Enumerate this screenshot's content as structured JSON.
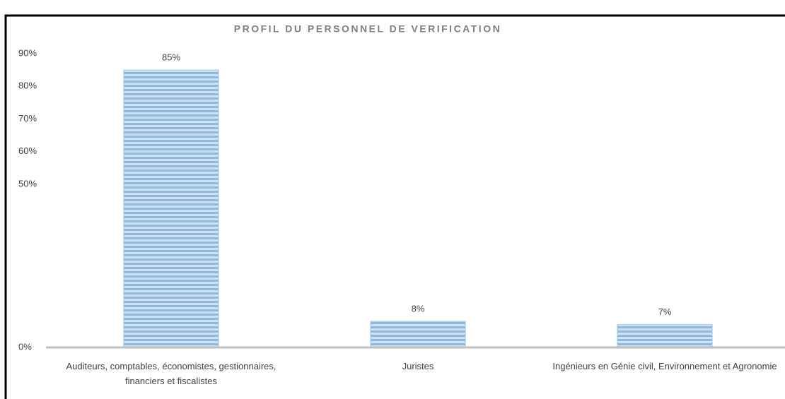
{
  "chart_data": {
    "type": "bar",
    "title": "PROFIL DU PERSONNEL DE VERIFICATION",
    "categories": [
      "Auditeurs, comptables, économistes, gestionnaires, financiers et fiscalistes",
      "Juristes",
      "Ingénieurs en Génie civil, Environnement et Agronomie"
    ],
    "values": [
      85,
      8,
      7
    ],
    "value_labels": [
      "85%",
      "8%",
      "7%"
    ],
    "color": "#9dc3e6",
    "ylim": [
      0,
      90
    ],
    "yticks": [
      {
        "value": 0,
        "label": "0%"
      },
      {
        "value": 50,
        "label": "50%"
      },
      {
        "value": 60,
        "label": "60%"
      },
      {
        "value": 70,
        "label": "70%"
      },
      {
        "value": 80,
        "label": "80%"
      },
      {
        "value": 90,
        "label": "90%"
      }
    ],
    "grid": false
  }
}
